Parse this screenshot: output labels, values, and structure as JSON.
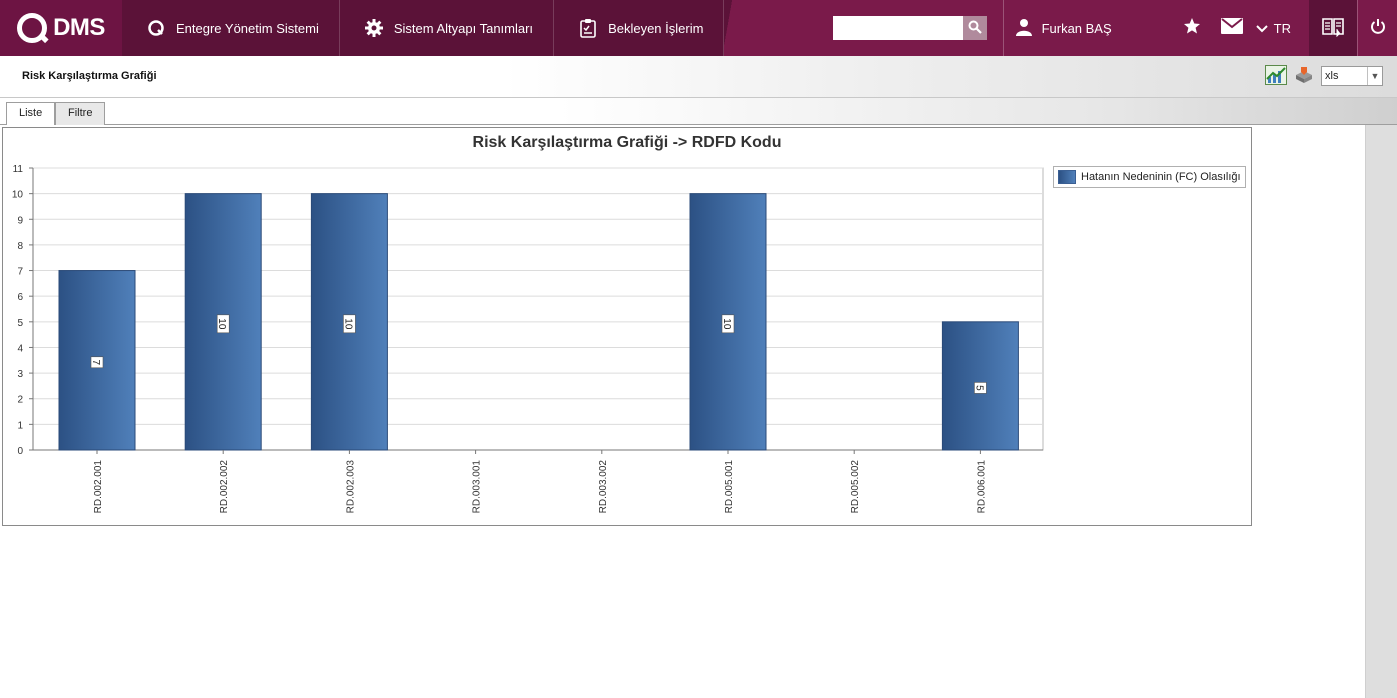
{
  "app": {
    "logo_text": "DMS"
  },
  "nav": {
    "items": [
      {
        "label": "Entegre Yönetim Sistemi",
        "icon": "q-circle-icon"
      },
      {
        "label": "Sistem Altyapı Tanımları",
        "icon": "gear-icon"
      },
      {
        "label": "Bekleyen İşlerim",
        "icon": "clipboard-icon"
      }
    ]
  },
  "search": {
    "placeholder": "",
    "value": ""
  },
  "user": {
    "name": "Furkan BAŞ"
  },
  "lang": {
    "code": "TR"
  },
  "page": {
    "title": "Risk Karşılaştırma Grafiği"
  },
  "export": {
    "format": "xls"
  },
  "tabs": [
    {
      "label": "Liste",
      "active": true
    },
    {
      "label": "Filtre",
      "active": false
    }
  ],
  "colors": {
    "topbar": "#7a1a4a",
    "bar_dark": "#2c5184",
    "bar_light": "#5080ba"
  },
  "chart_data": {
    "type": "bar",
    "title": "Risk Karşılaştırma Grafiği -> RDFD Kodu",
    "categories": [
      "RD.002.001",
      "RD.002.002",
      "RD.002.003",
      "RD.003.001",
      "RD.003.002",
      "RD.005.001",
      "RD.005.002",
      "RD.006.001"
    ],
    "series": [
      {
        "name": "Hatanın Nedeninin (FC) Olasılığı",
        "values": [
          7,
          10,
          10,
          0,
          0,
          10,
          0,
          5
        ]
      }
    ],
    "ylim": [
      0,
      11
    ],
    "yticks": [
      0,
      1,
      2,
      3,
      4,
      5,
      6,
      7,
      8,
      9,
      10,
      11
    ],
    "grid": true,
    "legend_position": "right",
    "data_labels": true
  }
}
